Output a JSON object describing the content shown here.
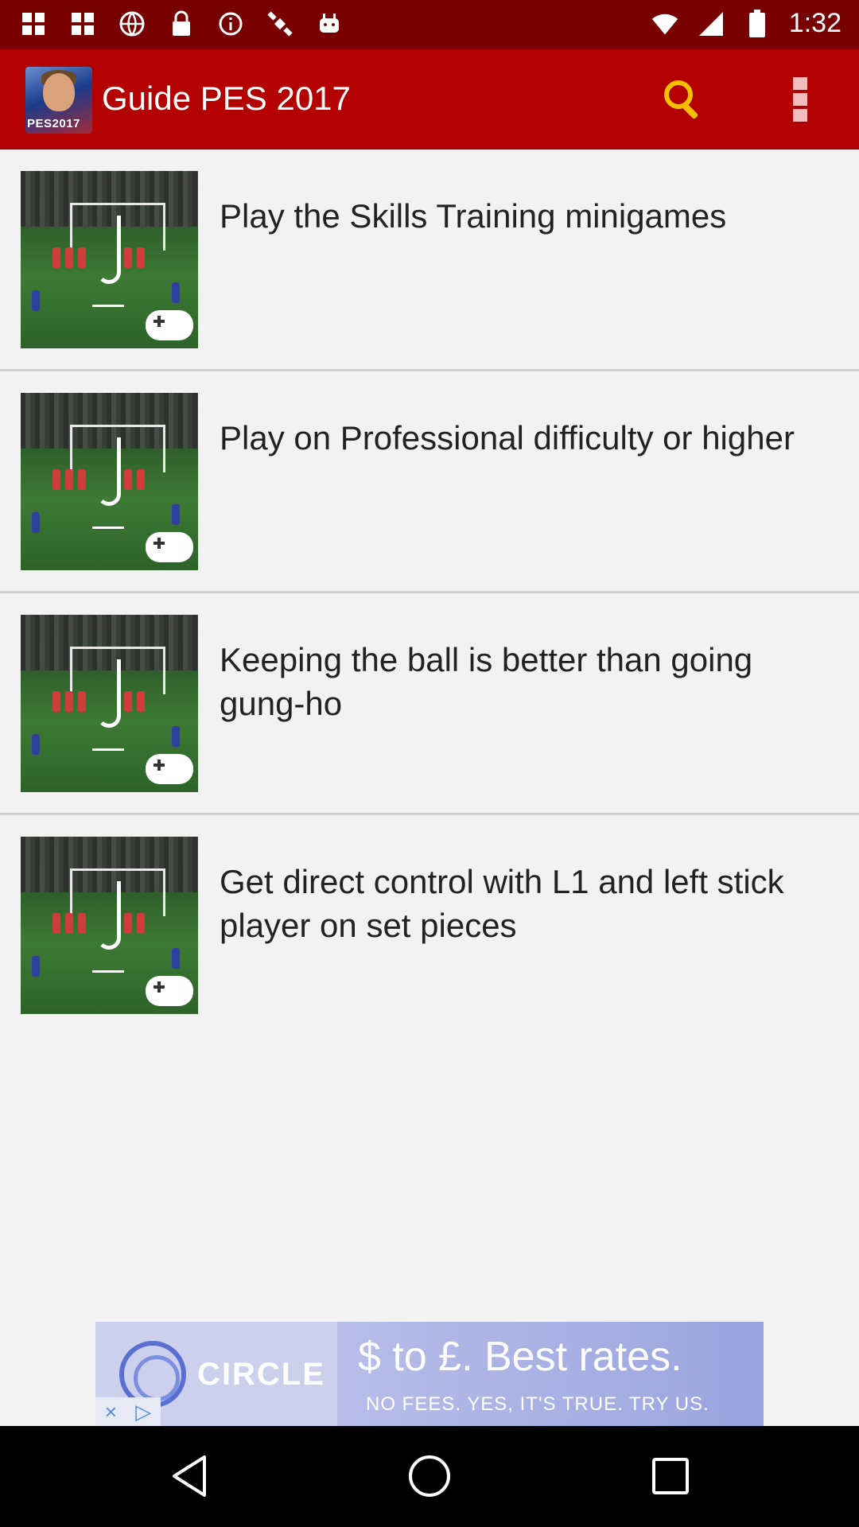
{
  "status_bar": {
    "time": "1:32",
    "icons": [
      "app-icon",
      "app-icon",
      "globe-icon",
      "lock-icon",
      "info-icon",
      "satellite-icon",
      "android-icon",
      "wifi-icon",
      "signal-icon",
      "battery-icon"
    ]
  },
  "app_bar": {
    "logo_text": "PES2017",
    "title": "Guide PES 2017",
    "search_icon": "search-icon",
    "menu_icon": "more-vert-icon"
  },
  "list": {
    "items": [
      {
        "text": "Play the Skills Training minigames"
      },
      {
        "text": "Play on Professional difficulty or higher"
      },
      {
        "text": "Keeping the ball is better than going gung-ho"
      },
      {
        "text": "Get direct control with L1 and left stick player on set pieces"
      }
    ]
  },
  "ad": {
    "brand": "CIRCLE",
    "headline": "$ to £. Best rates.",
    "subline": "NO FEES. YES, IT'S TRUE. TRY US.",
    "badge_close": "×",
    "badge_play": "▷"
  },
  "nav": {
    "back_icon": "back-icon",
    "home_icon": "home-icon",
    "recent_icon": "recent-apps-icon"
  },
  "colors": {
    "status_bar": "#790000",
    "app_bar": "#b30000",
    "background": "#f2f2f2",
    "search_icon": "#f5c000"
  }
}
